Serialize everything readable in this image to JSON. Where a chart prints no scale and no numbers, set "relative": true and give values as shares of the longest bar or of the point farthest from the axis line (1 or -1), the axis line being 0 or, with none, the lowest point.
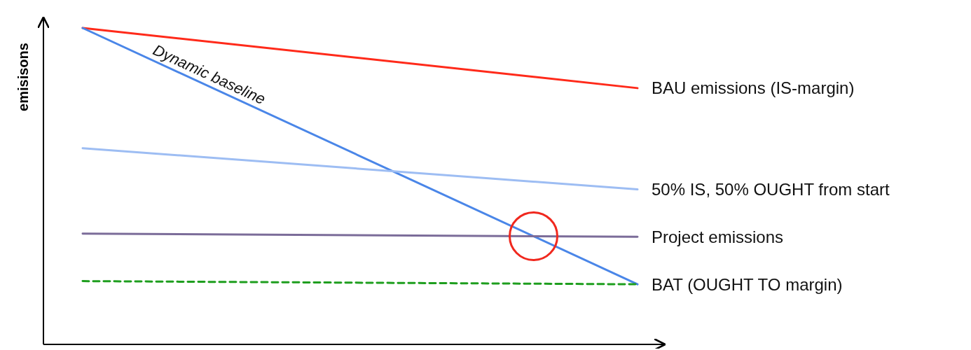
{
  "chart_data": {
    "type": "line",
    "relative": true,
    "ylabel": "emisisons",
    "categories": [
      null,
      null
    ],
    "legend": false,
    "grid": false,
    "marker": "none",
    "series": [
      {
        "name": "BAU emissions (IS-margin)",
        "color": "#ff2a1a",
        "values": [
          1,
          0.81
        ]
      },
      {
        "name": "Dynamic baseline",
        "color": "#4a86e8",
        "values": [
          1,
          0.19
        ]
      },
      {
        "name": "50% IS, 50% OUGHT  from start",
        "color": "#9dbdf3",
        "values": [
          0.62,
          0.49
        ]
      },
      {
        "name": "Project emissions",
        "color": "#7b6c99",
        "values": [
          0.35,
          0.34
        ]
      },
      {
        "name": "BAT (OUGHT TO margin)",
        "color": "#1e9e1e",
        "values": [
          0.2,
          0.19
        ],
        "line_style": "dashed"
      }
    ]
  }
}
